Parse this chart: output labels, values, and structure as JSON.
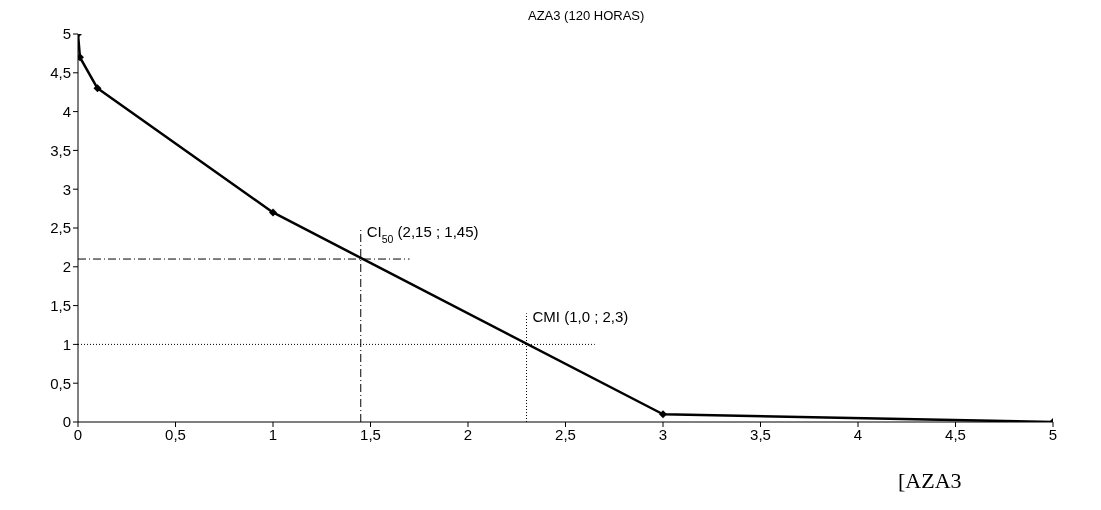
{
  "chart_data": {
    "type": "line",
    "title": "AZA3 (120 HORAS)",
    "xlabel": "[AZA3",
    "x": [
      0,
      0.01,
      0.1,
      1,
      3,
      5
    ],
    "series": [
      {
        "color": "#000000",
        "values": [
          5,
          4.7,
          4.3,
          2.7,
          0.1,
          0
        ]
      }
    ],
    "xlim": [
      0,
      5
    ],
    "ylim": [
      0,
      5
    ],
    "xticks": [
      0,
      {
        "value": 0.5,
        "label": "0,5"
      },
      1,
      {
        "value": 1.5,
        "label": "1,5"
      },
      2,
      {
        "value": 2.5,
        "label": "2,5"
      },
      3,
      {
        "value": 3.5,
        "label": "3,5"
      },
      4,
      {
        "value": 4.5,
        "label": "4,5"
      },
      5
    ],
    "yticks": [
      0,
      {
        "value": 0.5,
        "label": "0,5"
      },
      1,
      {
        "value": 1.5,
        "label": "1,5"
      },
      2,
      {
        "value": 2.5,
        "label": "2,5"
      },
      3,
      {
        "value": 3.5,
        "label": "3,5"
      },
      4,
      {
        "value": 4.5,
        "label": "4,5"
      },
      5
    ],
    "ref_lines": [
      {
        "axis": "y",
        "value": 2.1,
        "line_style": "dashdot"
      },
      {
        "axis": "x",
        "value": 1.45,
        "line_style": "dashdot"
      },
      {
        "axis": "y",
        "value": 1,
        "line_style": "dotted"
      },
      {
        "axis": "x",
        "value": 2.3,
        "line_style": "dotted"
      }
    ],
    "annotations": [
      {
        "text": "CI$_{50}$ (2,15 ; 1,45)",
        "x": 1.45,
        "y": 2.1
      },
      {
        "text": "CMI (1,0 ; 2,3)",
        "x": 2.3,
        "y": 1
      }
    ],
    "marker": "diamond",
    "line_style": "solid",
    "grid": false,
    "legend": false
  }
}
